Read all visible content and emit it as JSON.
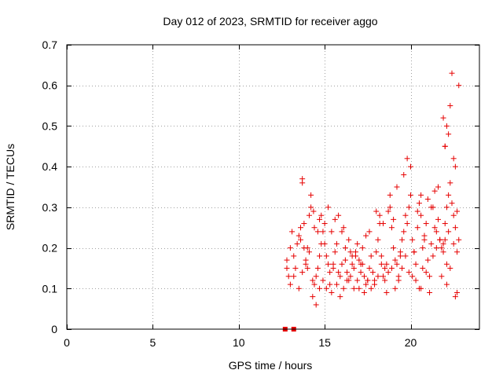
{
  "chart_data": {
    "type": "scatter",
    "title": "Day 012 of 2023, SRMTID for receiver aggo",
    "xlabel": "GPS time / hours",
    "ylabel": "SRMTID / TECUs",
    "xlim": [
      0,
      24
    ],
    "ylim": [
      0,
      0.7
    ],
    "xticks": [
      0,
      5,
      10,
      15,
      20
    ],
    "yticks": [
      0,
      0.1,
      0.2,
      0.3,
      0.4,
      0.5,
      0.6,
      0.7
    ],
    "xtick_labels": [
      "0",
      "5",
      "10",
      "15",
      "20"
    ],
    "ytick_labels": [
      "0",
      "0.1",
      "0.2",
      "0.3",
      "0.4",
      "0.5",
      "0.6",
      "0.7"
    ],
    "grid": true,
    "marker": "plus",
    "series_color": "#e60000",
    "zero_markers": {
      "x": [
        12.7,
        13.2
      ],
      "y": [
        0,
        0
      ]
    },
    "series": [
      {
        "name": "SRMTID",
        "x": [
          12.8,
          12.9,
          13.0,
          13.1,
          13.2,
          13.3,
          13.4,
          13.5,
          13.6,
          13.7,
          13.8,
          13.9,
          14.0,
          14.1,
          14.2,
          14.3,
          14.4,
          14.5,
          14.6,
          14.7,
          14.8,
          14.9,
          15.0,
          15.1,
          15.2,
          15.3,
          15.4,
          15.5,
          15.6,
          15.7,
          15.8,
          15.9,
          16.0,
          16.1,
          16.2,
          16.3,
          16.4,
          16.5,
          16.6,
          16.7,
          16.8,
          16.9,
          17.0,
          17.1,
          17.2,
          17.3,
          17.4,
          17.5,
          17.6,
          17.7,
          17.8,
          17.9,
          18.0,
          18.1,
          18.2,
          18.3,
          18.4,
          18.5,
          18.6,
          18.7,
          18.8,
          18.9,
          19.0,
          19.1,
          19.2,
          19.3,
          19.4,
          19.5,
          19.6,
          19.7,
          19.8,
          19.9,
          20.0,
          20.1,
          20.2,
          20.3,
          20.4,
          20.5,
          20.6,
          20.7,
          20.8,
          20.9,
          21.0,
          21.1,
          21.2,
          21.3,
          21.4,
          21.5,
          21.6,
          21.7,
          21.8,
          21.9,
          22.0,
          22.1,
          22.2,
          22.3,
          22.4,
          22.5,
          22.6,
          22.7,
          22.8,
          12.8,
          13.0,
          13.2,
          13.5,
          13.7,
          13.9,
          14.1,
          14.3,
          14.5,
          14.7,
          14.9,
          15.1,
          15.3,
          15.5,
          15.7,
          15.9,
          16.1,
          16.3,
          16.5,
          16.7,
          16.9,
          17.1,
          17.3,
          17.5,
          17.7,
          17.9,
          18.1,
          18.3,
          18.5,
          18.7,
          18.9,
          19.1,
          19.3,
          19.5,
          19.7,
          19.9,
          20.1,
          20.3,
          20.5,
          20.7,
          20.9,
          21.1,
          21.3,
          21.5,
          21.7,
          21.9,
          22.1,
          22.3,
          22.5,
          22.7,
          13.6,
          13.8,
          14.0,
          14.4,
          14.8,
          15.2,
          15.6,
          16.0,
          16.4,
          16.8,
          17.2,
          17.6,
          18.0,
          18.4,
          18.8,
          19.2,
          19.6,
          20.0,
          20.4,
          20.8,
          21.2,
          21.6,
          22.0,
          22.4,
          22.8,
          21.9,
          22.0,
          22.1,
          22.2,
          22.3,
          22.5,
          22.6,
          22.7,
          22.1,
          22.0,
          14.6,
          14.7,
          15.0,
          15.4,
          16.2,
          16.6,
          17.4,
          18.2,
          19.0,
          19.4,
          20.2,
          20.6,
          21.0,
          21.4,
          21.8,
          22.2,
          22.6,
          13.7,
          14.2,
          14.35,
          15.8,
          17.0,
          18.6,
          19.8,
          20.6
        ],
        "y": [
          0.15,
          0.13,
          0.2,
          0.24,
          0.18,
          0.15,
          0.21,
          0.23,
          0.25,
          0.36,
          0.2,
          0.16,
          0.15,
          0.28,
          0.3,
          0.12,
          0.11,
          0.13,
          0.15,
          0.18,
          0.21,
          0.24,
          0.26,
          0.18,
          0.16,
          0.11,
          0.09,
          0.15,
          0.19,
          0.21,
          0.14,
          0.13,
          0.16,
          0.25,
          0.17,
          0.14,
          0.12,
          0.19,
          0.16,
          0.15,
          0.18,
          0.21,
          0.17,
          0.14,
          0.2,
          0.13,
          0.11,
          0.12,
          0.15,
          0.18,
          0.14,
          0.12,
          0.19,
          0.22,
          0.28,
          0.18,
          0.13,
          0.15,
          0.16,
          0.29,
          0.33,
          0.25,
          0.2,
          0.17,
          0.16,
          0.12,
          0.19,
          0.22,
          0.24,
          0.28,
          0.26,
          0.3,
          0.33,
          0.22,
          0.19,
          0.16,
          0.25,
          0.31,
          0.28,
          0.2,
          0.22,
          0.26,
          0.17,
          0.13,
          0.21,
          0.3,
          0.25,
          0.24,
          0.27,
          0.22,
          0.2,
          0.19,
          0.26,
          0.3,
          0.24,
          0.36,
          0.31,
          0.28,
          0.25,
          0.29,
          0.22,
          0.17,
          0.11,
          0.13,
          0.1,
          0.14,
          0.17,
          0.19,
          0.08,
          0.06,
          0.1,
          0.12,
          0.1,
          0.14,
          0.16,
          0.11,
          0.08,
          0.1,
          0.12,
          0.13,
          0.1,
          0.12,
          0.16,
          0.09,
          0.12,
          0.1,
          0.11,
          0.13,
          0.16,
          0.12,
          0.14,
          0.15,
          0.1,
          0.13,
          0.15,
          0.18,
          0.14,
          0.13,
          0.12,
          0.1,
          0.15,
          0.14,
          0.09,
          0.18,
          0.2,
          0.22,
          0.21,
          0.16,
          0.15,
          0.21,
          0.19,
          0.22,
          0.26,
          0.2,
          0.25,
          0.28,
          0.3,
          0.27,
          0.24,
          0.22,
          0.19,
          0.16,
          0.24,
          0.29,
          0.26,
          0.3,
          0.35,
          0.38,
          0.4,
          0.29,
          0.23,
          0.3,
          0.35,
          0.45,
          0.63,
          0.6,
          0.52,
          0.45,
          0.5,
          0.48,
          0.55,
          0.42,
          0.4,
          0.09,
          0.11,
          0.22,
          0.24,
          0.27,
          0.21,
          0.24,
          0.2,
          0.18,
          0.23,
          0.26,
          0.27,
          0.18,
          0.19,
          0.33,
          0.32,
          0.34,
          0.13,
          0.33,
          0.08,
          0.37,
          0.33,
          0.29,
          0.28,
          0.1,
          0.09,
          0.42,
          0.1
        ]
      }
    ]
  }
}
